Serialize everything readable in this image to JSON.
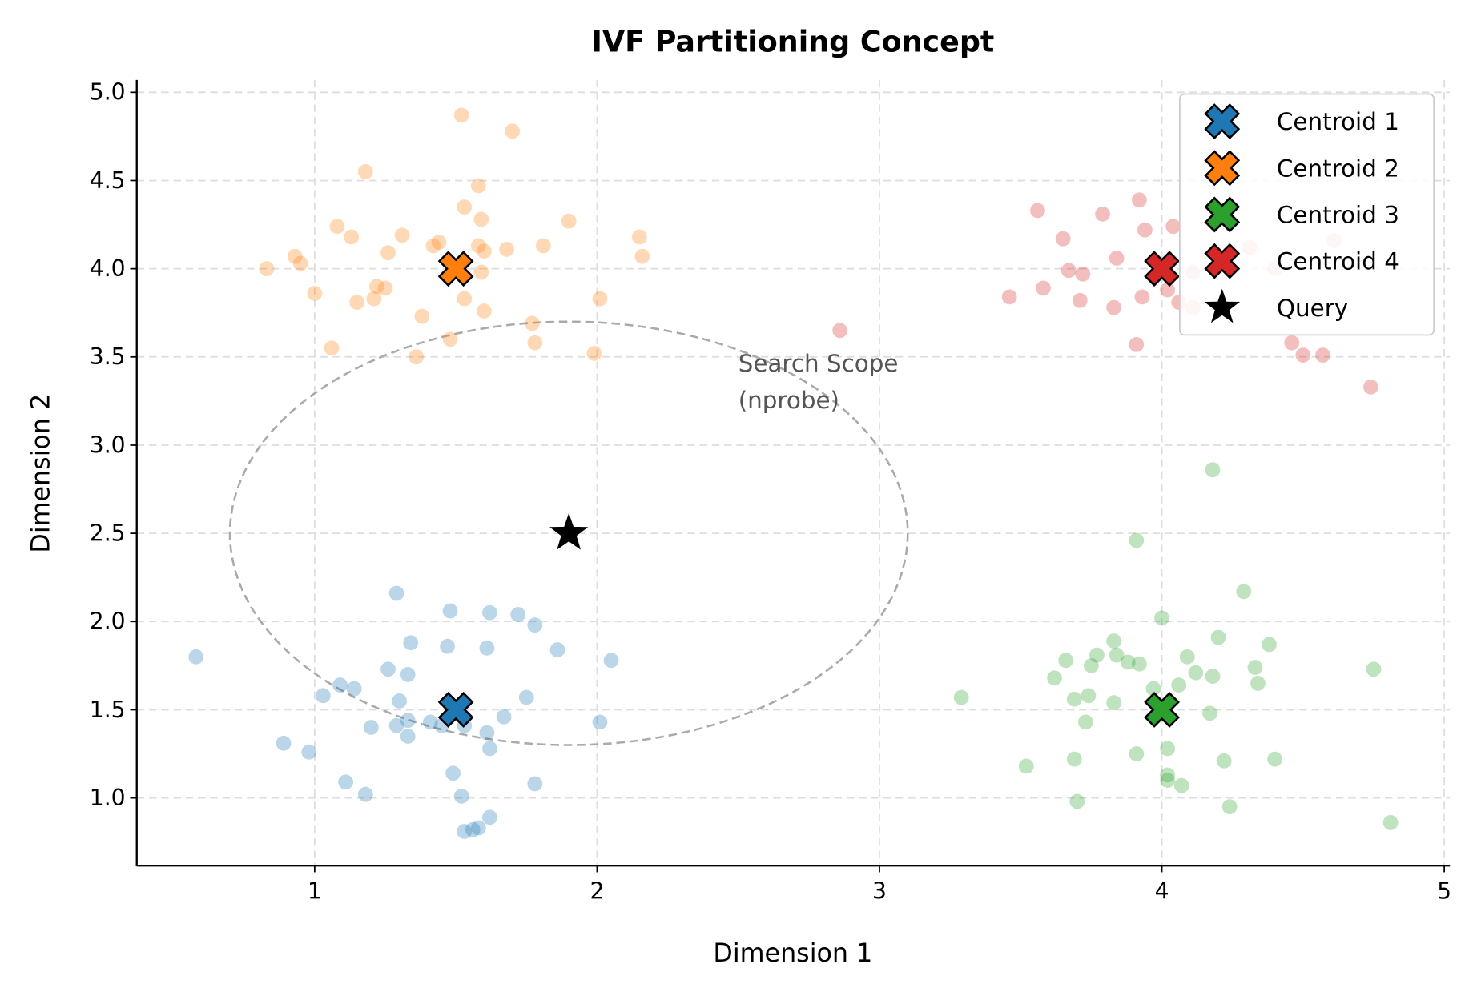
{
  "chart_data": {
    "type": "scatter",
    "title": "IVF Partitioning Concept",
    "xlabel": "Dimension 1",
    "ylabel": "Dimension 2",
    "xlim": [
      0.37,
      5.02
    ],
    "ylim": [
      0.616,
      5.07
    ],
    "xticks": [
      1,
      2,
      3,
      4,
      5
    ],
    "xtick_labels": [
      "1",
      "2",
      "3",
      "4",
      "5"
    ],
    "yticks": [
      1.0,
      1.5,
      2.0,
      2.5,
      3.0,
      3.5,
      4.0,
      4.5,
      5.0
    ],
    "ytick_labels": [
      "1.0",
      "1.5",
      "2.0",
      "2.5",
      "3.0",
      "3.5",
      "4.0",
      "4.5",
      "5.0"
    ],
    "grid": true,
    "legend_placement": "top-right",
    "clusters": [
      {
        "color": "#1f77b4",
        "points": [
          [
            0.58,
            1.8
          ],
          [
            1.03,
            1.58
          ],
          [
            1.09,
            1.64
          ],
          [
            1.14,
            1.62
          ],
          [
            1.29,
            2.16
          ],
          [
            1.34,
            1.88
          ],
          [
            1.48,
            2.06
          ],
          [
            1.47,
            1.86
          ],
          [
            1.62,
            2.05
          ],
          [
            1.72,
            2.04
          ],
          [
            1.78,
            1.98
          ],
          [
            1.61,
            1.85
          ],
          [
            1.86,
            1.84
          ],
          [
            2.05,
            1.78
          ],
          [
            1.26,
            1.73
          ],
          [
            1.33,
            1.7
          ],
          [
            1.3,
            1.55
          ],
          [
            1.75,
            1.57
          ],
          [
            1.67,
            1.46
          ],
          [
            1.33,
            1.44
          ],
          [
            1.2,
            1.4
          ],
          [
            1.29,
            1.41
          ],
          [
            1.33,
            1.35
          ],
          [
            1.41,
            1.43
          ],
          [
            1.45,
            1.41
          ],
          [
            1.53,
            1.41
          ],
          [
            1.61,
            1.37
          ],
          [
            1.62,
            1.28
          ],
          [
            2.01,
            1.43
          ],
          [
            0.89,
            1.31
          ],
          [
            0.98,
            1.26
          ],
          [
            1.11,
            1.09
          ],
          [
            1.18,
            1.02
          ],
          [
            1.49,
            1.14
          ],
          [
            1.78,
            1.08
          ],
          [
            1.52,
            1.01
          ],
          [
            1.62,
            0.89
          ],
          [
            1.58,
            0.83
          ],
          [
            1.53,
            0.81
          ],
          [
            1.56,
            0.82
          ]
        ]
      },
      {
        "color": "#ff7f0e",
        "points": [
          [
            0.83,
            4.0
          ],
          [
            0.93,
            4.07
          ],
          [
            0.95,
            4.03
          ],
          [
            1.0,
            3.86
          ],
          [
            1.08,
            4.24
          ],
          [
            1.13,
            4.18
          ],
          [
            1.18,
            4.55
          ],
          [
            1.26,
            4.09
          ],
          [
            1.31,
            4.19
          ],
          [
            1.22,
            3.9
          ],
          [
            1.25,
            3.89
          ],
          [
            1.21,
            3.83
          ],
          [
            1.15,
            3.81
          ],
          [
            1.06,
            3.55
          ],
          [
            1.38,
            3.73
          ],
          [
            1.36,
            3.5
          ],
          [
            1.42,
            4.13
          ],
          [
            1.44,
            4.15
          ],
          [
            1.52,
            4.87
          ],
          [
            1.7,
            4.78
          ],
          [
            1.58,
            4.47
          ],
          [
            1.53,
            4.35
          ],
          [
            1.59,
            4.28
          ],
          [
            1.58,
            4.13
          ],
          [
            1.6,
            4.1
          ],
          [
            1.68,
            4.11
          ],
          [
            1.59,
            3.98
          ],
          [
            1.53,
            3.83
          ],
          [
            1.6,
            3.76
          ],
          [
            1.48,
            3.6
          ],
          [
            1.81,
            4.13
          ],
          [
            1.9,
            4.27
          ],
          [
            2.15,
            4.18
          ],
          [
            2.16,
            4.07
          ],
          [
            2.01,
            3.83
          ],
          [
            1.77,
            3.69
          ],
          [
            1.78,
            3.58
          ],
          [
            1.99,
            3.52
          ]
        ]
      },
      {
        "color": "#2ca02c",
        "points": [
          [
            4.18,
            2.86
          ],
          [
            3.91,
            2.46
          ],
          [
            4.29,
            2.17
          ],
          [
            4.0,
            2.02
          ],
          [
            4.2,
            1.91
          ],
          [
            4.38,
            1.87
          ],
          [
            3.83,
            1.89
          ],
          [
            3.66,
            1.78
          ],
          [
            3.77,
            1.81
          ],
          [
            3.84,
            1.81
          ],
          [
            3.75,
            1.75
          ],
          [
            3.88,
            1.77
          ],
          [
            3.92,
            1.76
          ],
          [
            4.09,
            1.8
          ],
          [
            3.62,
            1.68
          ],
          [
            4.12,
            1.71
          ],
          [
            4.18,
            1.69
          ],
          [
            4.33,
            1.74
          ],
          [
            4.34,
            1.65
          ],
          [
            4.75,
            1.73
          ],
          [
            3.29,
            1.57
          ],
          [
            3.69,
            1.56
          ],
          [
            3.74,
            1.58
          ],
          [
            3.83,
            1.54
          ],
          [
            3.97,
            1.62
          ],
          [
            4.06,
            1.64
          ],
          [
            3.73,
            1.43
          ],
          [
            4.17,
            1.48
          ],
          [
            4.02,
            1.28
          ],
          [
            3.91,
            1.25
          ],
          [
            3.69,
            1.22
          ],
          [
            3.52,
            1.18
          ],
          [
            4.22,
            1.21
          ],
          [
            4.4,
            1.22
          ],
          [
            4.02,
            1.13
          ],
          [
            4.02,
            1.1
          ],
          [
            4.07,
            1.07
          ],
          [
            3.7,
            0.98
          ],
          [
            4.24,
            0.95
          ],
          [
            4.81,
            0.86
          ]
        ]
      },
      {
        "color": "#d62728",
        "points": [
          [
            2.86,
            3.65
          ],
          [
            3.46,
            3.84
          ],
          [
            3.56,
            4.33
          ],
          [
            3.58,
            3.89
          ],
          [
            3.65,
            4.17
          ],
          [
            3.67,
            3.99
          ],
          [
            3.72,
            3.97
          ],
          [
            3.71,
            3.82
          ],
          [
            3.79,
            4.31
          ],
          [
            3.84,
            4.06
          ],
          [
            3.83,
            3.78
          ],
          [
            3.92,
            4.39
          ],
          [
            3.94,
            4.22
          ],
          [
            4.04,
            4.24
          ],
          [
            3.93,
            3.84
          ],
          [
            4.02,
            3.88
          ],
          [
            3.91,
            3.57
          ],
          [
            4.06,
            3.81
          ],
          [
            4.11,
            3.98
          ],
          [
            4.11,
            3.78
          ],
          [
            4.5,
            3.51
          ],
          [
            4.46,
            3.58
          ],
          [
            4.57,
            3.51
          ],
          [
            4.74,
            3.33
          ],
          [
            4.31,
            4.12
          ],
          [
            4.4,
            4.0
          ],
          [
            4.61,
            4.16
          ]
        ]
      }
    ],
    "centroids": [
      {
        "name": "Centroid 1",
        "x": 1.5,
        "y": 1.5,
        "color": "#1f77b4"
      },
      {
        "name": "Centroid 2",
        "x": 1.5,
        "y": 4.0,
        "color": "#ff7f0e"
      },
      {
        "name": "Centroid 3",
        "x": 4.0,
        "y": 1.5,
        "color": "#2ca02c"
      },
      {
        "name": "Centroid 4",
        "x": 4.0,
        "y": 4.0,
        "color": "#d62728"
      }
    ],
    "query": {
      "name": "Query",
      "x": 1.9,
      "y": 2.5,
      "color": "#000000"
    },
    "search_scope": {
      "center": [
        1.9,
        2.5
      ],
      "width": 2.4,
      "height": 2.4,
      "color": "#aaaaaa"
    },
    "annotation": {
      "line1": "Search Scope",
      "line2": "(nprobe)",
      "x": 2.5,
      "y": 3.3
    }
  }
}
